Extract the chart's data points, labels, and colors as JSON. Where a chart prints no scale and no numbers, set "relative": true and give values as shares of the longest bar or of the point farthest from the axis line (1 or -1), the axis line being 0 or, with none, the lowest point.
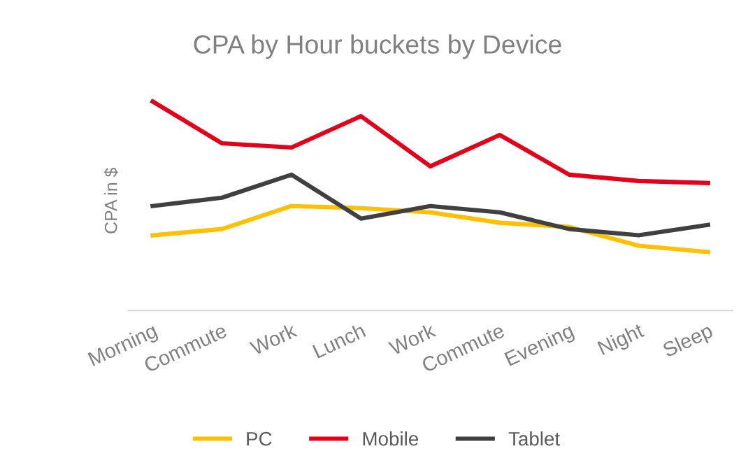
{
  "chart_data": {
    "type": "line",
    "title": "CPA by Hour buckets by Device",
    "ylabel": "CPA in $",
    "relative": true,
    "categories": [
      "Morning",
      "Commute",
      "Work",
      "Lunch",
      "Work",
      "Commute",
      "Evening",
      "Night",
      "Sleep"
    ],
    "series": [
      {
        "name": "PC",
        "color": "#ffc000",
        "values": [
          0.36,
          0.39,
          0.5,
          0.49,
          0.47,
          0.42,
          0.4,
          0.31,
          0.28
        ]
      },
      {
        "name": "Mobile",
        "color": "#e3001b",
        "values": [
          1,
          0.8,
          0.78,
          0.93,
          0.69,
          0.84,
          0.65,
          0.62,
          0.61
        ]
      },
      {
        "name": "Tablet",
        "color": "#404040",
        "values": [
          0.5,
          0.54,
          0.65,
          0.44,
          0.5,
          0.47,
          0.39,
          0.36,
          0.41
        ]
      }
    ],
    "legend": "bottom",
    "grid": false,
    "marker": "none",
    "line_style": "solid"
  }
}
